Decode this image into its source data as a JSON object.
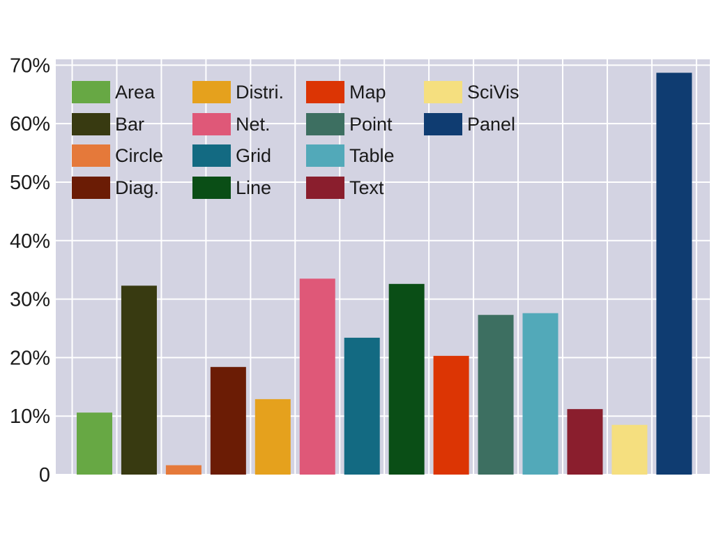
{
  "chart_data": {
    "type": "bar",
    "categories": [
      "Area",
      "Bar",
      "Circle",
      "Diag.",
      "Distri.",
      "Net.",
      "Grid",
      "Line",
      "Map",
      "Point",
      "Table",
      "Text",
      "SciVis",
      "Panel"
    ],
    "values": [
      10.6,
      32.3,
      1.6,
      18.4,
      12.9,
      33.5,
      23.4,
      32.6,
      20.3,
      27.3,
      27.6,
      11.2,
      8.5,
      68.7
    ],
    "colors": [
      "#67a844",
      "#383a11",
      "#e5793a",
      "#6b1c05",
      "#e5a11d",
      "#df5878",
      "#136a82",
      "#0a4e16",
      "#dc3504",
      "#3d6f61",
      "#52a9b9",
      "#8a1e2d",
      "#f5df7f",
      "#0f3c71"
    ],
    "legend": {
      "placement": "top",
      "columns": [
        [
          "Area",
          "Bar",
          "Circle",
          "Diag."
        ],
        [
          "Distri.",
          "Net.",
          "Grid",
          "Line"
        ],
        [
          "Map",
          "Point",
          "Table",
          "Text"
        ],
        [
          "SciVis",
          "Panel"
        ]
      ]
    },
    "y_ticks": [
      "0",
      "10%",
      "20%",
      "30%",
      "40%",
      "50%",
      "60%",
      "70%"
    ],
    "ylim": [
      0,
      71
    ],
    "grid": true,
    "background": "#d3d3e2",
    "title": "",
    "xlabel": "",
    "ylabel": ""
  }
}
